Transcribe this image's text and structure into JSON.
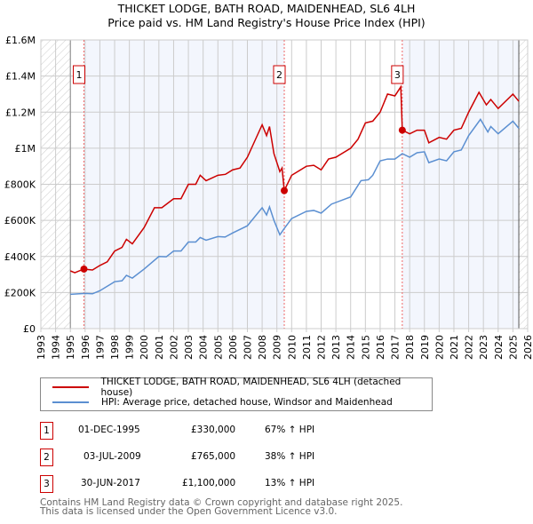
{
  "chart_data": {
    "type": "line",
    "title": "THICKET LODGE, BATH ROAD, MAIDENHEAD, SL6 4LH",
    "subtitle": "Price paid vs. HM Land Registry's House Price Index (HPI)",
    "xlim": [
      1993,
      2026
    ],
    "ylim": [
      0,
      1600000
    ],
    "x_ticks": [
      "1993",
      "1994",
      "1995",
      "1996",
      "1997",
      "1998",
      "1999",
      "2000",
      "2001",
      "2002",
      "2003",
      "2004",
      "2005",
      "2006",
      "2007",
      "2008",
      "2009",
      "2010",
      "2011",
      "2012",
      "2013",
      "2014",
      "2015",
      "2016",
      "2017",
      "2018",
      "2019",
      "2020",
      "2021",
      "2022",
      "2023",
      "2024",
      "2025",
      "2026"
    ],
    "y_ticks": [
      {
        "v": 0,
        "label": "£0"
      },
      {
        "v": 200000,
        "label": "£200K"
      },
      {
        "v": 400000,
        "label": "£400K"
      },
      {
        "v": 600000,
        "label": "£600K"
      },
      {
        "v": 800000,
        "label": "£800K"
      },
      {
        "v": 1000000,
        "label": "£1M"
      },
      {
        "v": 1200000,
        "label": "£1.2M"
      },
      {
        "v": 1400000,
        "label": "£1.4M"
      },
      {
        "v": 1600000,
        "label": "£1.6M"
      }
    ],
    "grid": true,
    "series": [
      {
        "name": "THICKET LODGE, BATH ROAD, MAIDENHEAD, SL6 4LH (detached house)",
        "color": "#cc0000",
        "points": [
          [
            1995.0,
            320000
          ],
          [
            1995.3,
            310000
          ],
          [
            1995.9,
            330000
          ],
          [
            1996.5,
            325000
          ],
          [
            1997,
            350000
          ],
          [
            1997.5,
            370000
          ],
          [
            1998,
            430000
          ],
          [
            1998.5,
            450000
          ],
          [
            1998.8,
            495000
          ],
          [
            1999.2,
            470000
          ],
          [
            2000,
            560000
          ],
          [
            2000.7,
            670000
          ],
          [
            2001.2,
            670000
          ],
          [
            2002,
            720000
          ],
          [
            2002.5,
            720000
          ],
          [
            2003,
            800000
          ],
          [
            2003.5,
            800000
          ],
          [
            2003.8,
            850000
          ],
          [
            2004.2,
            820000
          ],
          [
            2005,
            850000
          ],
          [
            2005.5,
            855000
          ],
          [
            2006,
            880000
          ],
          [
            2006.5,
            890000
          ],
          [
            2007,
            950000
          ],
          [
            2007.5,
            1040000
          ],
          [
            2008,
            1130000
          ],
          [
            2008.3,
            1070000
          ],
          [
            2008.5,
            1120000
          ],
          [
            2008.8,
            970000
          ],
          [
            2009.2,
            870000
          ],
          [
            2009.35,
            890000
          ],
          [
            2009.5,
            765000
          ],
          [
            2010,
            850000
          ],
          [
            2011,
            900000
          ],
          [
            2011.5,
            905000
          ],
          [
            2012,
            880000
          ],
          [
            2012.5,
            940000
          ],
          [
            2013,
            950000
          ],
          [
            2014,
            1000000
          ],
          [
            2014.5,
            1050000
          ],
          [
            2015,
            1140000
          ],
          [
            2015.5,
            1150000
          ],
          [
            2016,
            1200000
          ],
          [
            2016.5,
            1300000
          ],
          [
            2017,
            1290000
          ],
          [
            2017.4,
            1340000
          ],
          [
            2017.5,
            1100000
          ],
          [
            2018,
            1080000
          ],
          [
            2018.5,
            1100000
          ],
          [
            2019,
            1100000
          ],
          [
            2019.3,
            1030000
          ],
          [
            2020,
            1060000
          ],
          [
            2020.5,
            1050000
          ],
          [
            2021,
            1100000
          ],
          [
            2021.5,
            1110000
          ],
          [
            2022,
            1200000
          ],
          [
            2022.7,
            1310000
          ],
          [
            2023.2,
            1240000
          ],
          [
            2023.5,
            1270000
          ],
          [
            2024,
            1220000
          ],
          [
            2025,
            1300000
          ],
          [
            2025.4,
            1260000
          ]
        ]
      },
      {
        "name": "HPI: Average price, detached house, Windsor and Maidenhead",
        "color": "#5b8fd1",
        "points": [
          [
            1995,
            190000
          ],
          [
            1996,
            195000
          ],
          [
            1996.5,
            193000
          ],
          [
            1997,
            210000
          ],
          [
            1998,
            260000
          ],
          [
            1998.5,
            265000
          ],
          [
            1998.8,
            295000
          ],
          [
            1999.2,
            280000
          ],
          [
            2000,
            330000
          ],
          [
            2001,
            400000
          ],
          [
            2001.5,
            398000
          ],
          [
            2002,
            430000
          ],
          [
            2002.5,
            430000
          ],
          [
            2003,
            480000
          ],
          [
            2003.5,
            480000
          ],
          [
            2003.8,
            505000
          ],
          [
            2004.2,
            490000
          ],
          [
            2005,
            510000
          ],
          [
            2005.5,
            508000
          ],
          [
            2006,
            530000
          ],
          [
            2007,
            570000
          ],
          [
            2008,
            670000
          ],
          [
            2008.3,
            630000
          ],
          [
            2008.5,
            675000
          ],
          [
            2008.8,
            600000
          ],
          [
            2009.2,
            520000
          ],
          [
            2009.5,
            555000
          ],
          [
            2010,
            610000
          ],
          [
            2011,
            650000
          ],
          [
            2011.5,
            655000
          ],
          [
            2012,
            640000
          ],
          [
            2012.7,
            690000
          ],
          [
            2014,
            730000
          ],
          [
            2014.7,
            820000
          ],
          [
            2015.2,
            825000
          ],
          [
            2015.5,
            850000
          ],
          [
            2016,
            930000
          ],
          [
            2016.5,
            940000
          ],
          [
            2017,
            940000
          ],
          [
            2017.5,
            970000
          ],
          [
            2018,
            950000
          ],
          [
            2018.5,
            975000
          ],
          [
            2019,
            980000
          ],
          [
            2019.3,
            920000
          ],
          [
            2020,
            940000
          ],
          [
            2020.5,
            930000
          ],
          [
            2021,
            980000
          ],
          [
            2021.5,
            990000
          ],
          [
            2022,
            1070000
          ],
          [
            2022.8,
            1160000
          ],
          [
            2023.3,
            1090000
          ],
          [
            2023.5,
            1120000
          ],
          [
            2024,
            1080000
          ],
          [
            2025,
            1150000
          ],
          [
            2025.4,
            1110000
          ]
        ]
      }
    ],
    "sales": [
      {
        "n": "1",
        "x": 1995.92,
        "price": 330000
      },
      {
        "n": "2",
        "x": 2009.5,
        "price": 765000
      },
      {
        "n": "3",
        "x": 2017.5,
        "price": 1100000
      }
    ],
    "data_start": 1995,
    "data_end": 2025.4
  },
  "legend": {
    "property": "THICKET LODGE, BATH ROAD, MAIDENHEAD, SL6 4LH (detached house)",
    "hpi": "HPI: Average price, detached house, Windsor and Maidenhead"
  },
  "transactions": [
    {
      "n": "1",
      "date": "01-DEC-1995",
      "price": "£330,000",
      "hpi": "67% ↑ HPI"
    },
    {
      "n": "2",
      "date": "03-JUL-2009",
      "price": "£765,000",
      "hpi": "38% ↑ HPI"
    },
    {
      "n": "3",
      "date": "30-JUN-2017",
      "price": "£1,100,000",
      "hpi": "13% ↑ HPI"
    }
  ],
  "footer": {
    "line1": "Contains HM Land Registry data © Crown copyright and database right 2025.",
    "line2": "This data is licensed under the Open Government Licence v3.0."
  }
}
